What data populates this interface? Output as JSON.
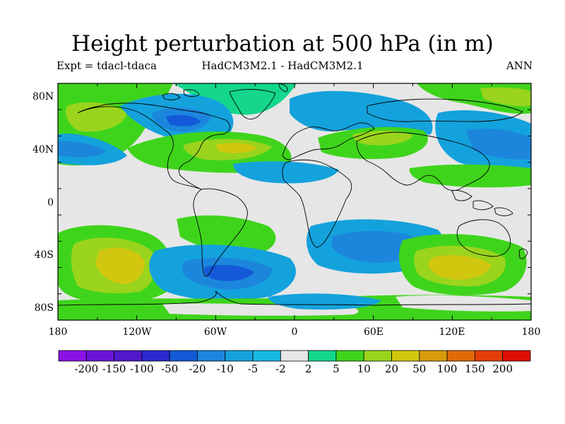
{
  "title": "Height perturbation at 500 hPa (in m)",
  "subtitle_left": "Expt = tdacl-tdaca",
  "subtitle_center": "HadCM3M2.1 - HadCM3M2.1",
  "subtitle_right": "ANN",
  "y_axis_labels": [
    "80N",
    "40N",
    "0",
    "40S",
    "80S"
  ],
  "x_axis_labels": [
    "180",
    "120W",
    "60W",
    "0",
    "60E",
    "120E",
    "180"
  ],
  "colorbar": {
    "labels": [
      "-200",
      "-150",
      "-100",
      "-50",
      "-20",
      "-10",
      "-5",
      "-2",
      "2",
      "5",
      "10",
      "20",
      "50",
      "100",
      "150",
      "200"
    ],
    "colors": [
      "#8a12e6",
      "#6a14d8",
      "#5119c9",
      "#2a2ad0",
      "#1359d8",
      "#1c86dd",
      "#14a2dc",
      "#17b9e2",
      "#e6e6e6",
      "#14d68c",
      "#3fd41c",
      "#9ad41c",
      "#d2c70f",
      "#d99b0c",
      "#e06a08",
      "#e23e08",
      "#dd0d06"
    ]
  },
  "map": {
    "lon_range": [
      -180,
      180
    ],
    "lat_range": [
      -90,
      90
    ],
    "background_color": "#e6e6e6"
  }
}
